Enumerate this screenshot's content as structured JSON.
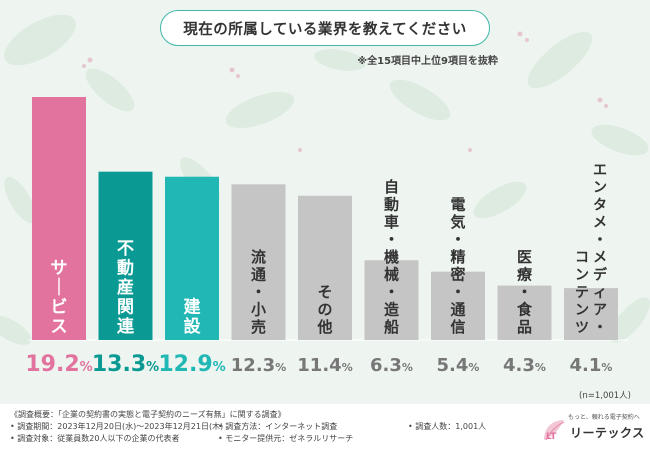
{
  "title": "現在の所属している業界を教えてください",
  "subnote": "※全15項目中上位9項目を抜粋",
  "sample_size": "(n=1,001人)",
  "chart_data": {
    "type": "bar",
    "title": "現在の所属している業界を教えてください",
    "categories": [
      "サービス",
      "不動産関連",
      "建設",
      "流通・小売",
      "その他",
      "自動車・機械・造船",
      "電気・精密・通信",
      "医療・食品",
      "エンタメ・メディア・コンテンツ"
    ],
    "labels": [
      "19.2",
      "13.3",
      "12.9",
      "12.3",
      "11.4",
      "6.3",
      "5.4",
      "4.3",
      "4.1"
    ],
    "unit": "%",
    "values": [
      19.2,
      13.3,
      12.9,
      12.3,
      11.4,
      6.3,
      5.4,
      4.3,
      4.1
    ],
    "colors": [
      "#e2739f",
      "#0a9a93",
      "#21b7b5",
      "#c5c5c5",
      "#c5c5c5",
      "#c5c5c5",
      "#c5c5c5",
      "#c5c5c5",
      "#c5c5c5"
    ],
    "label_colors": [
      "#e2739f",
      "#0a9a93",
      "#21b7b5",
      "#777777",
      "#777777",
      "#777777",
      "#777777",
      "#777777",
      "#777777"
    ],
    "ylim": [
      0,
      19.2
    ]
  },
  "footer": {
    "overview": "《調査概要：「企業の契約書の実態と電子契約のニーズ有無」に関する調査》",
    "period": "• 調査期間：2023年12月20日(水)～2023年12月21日(木)",
    "method": "• 調査方法：インターネット調査",
    "count": "• 調査人数：1,001人",
    "target": "• 調査対象：従業員数20人以下の企業の代表者",
    "provider": "• モニター提供元：ゼネラルリサーチ"
  },
  "logo": {
    "mark": "LT",
    "tagline": "もっと、頼れる電子契約へ",
    "name": "リーテックス"
  }
}
